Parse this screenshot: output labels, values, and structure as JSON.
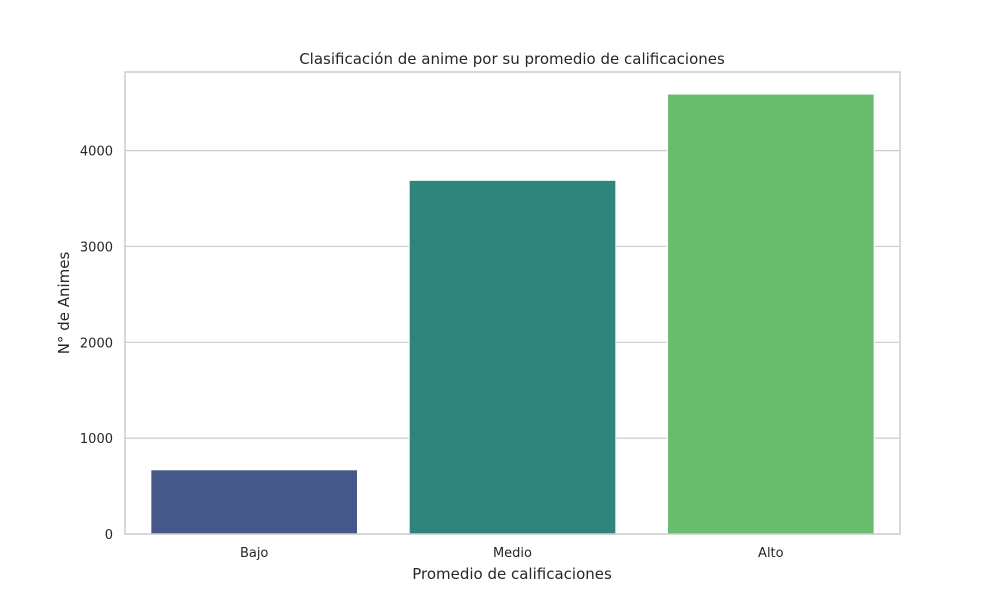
{
  "chart_data": {
    "type": "bar",
    "title": "Clasificación de anime por su promedio de calificaciones",
    "xlabel": "Promedio de calificaciones",
    "ylabel": "N° de Animes",
    "categories": [
      "Bajo",
      "Medio",
      "Alto"
    ],
    "values": [
      670,
      3690,
      4590
    ],
    "colors": [
      "#46598a",
      "#2f847c",
      "#6abd6e"
    ],
    "ylim": [
      0,
      4820
    ],
    "yticks": [
      0,
      1000,
      2000,
      3000,
      4000
    ],
    "ytick_labels": [
      "0",
      "1000",
      "2000",
      "3000",
      "4000"
    ],
    "grid": "horizontal",
    "legend": "none"
  }
}
